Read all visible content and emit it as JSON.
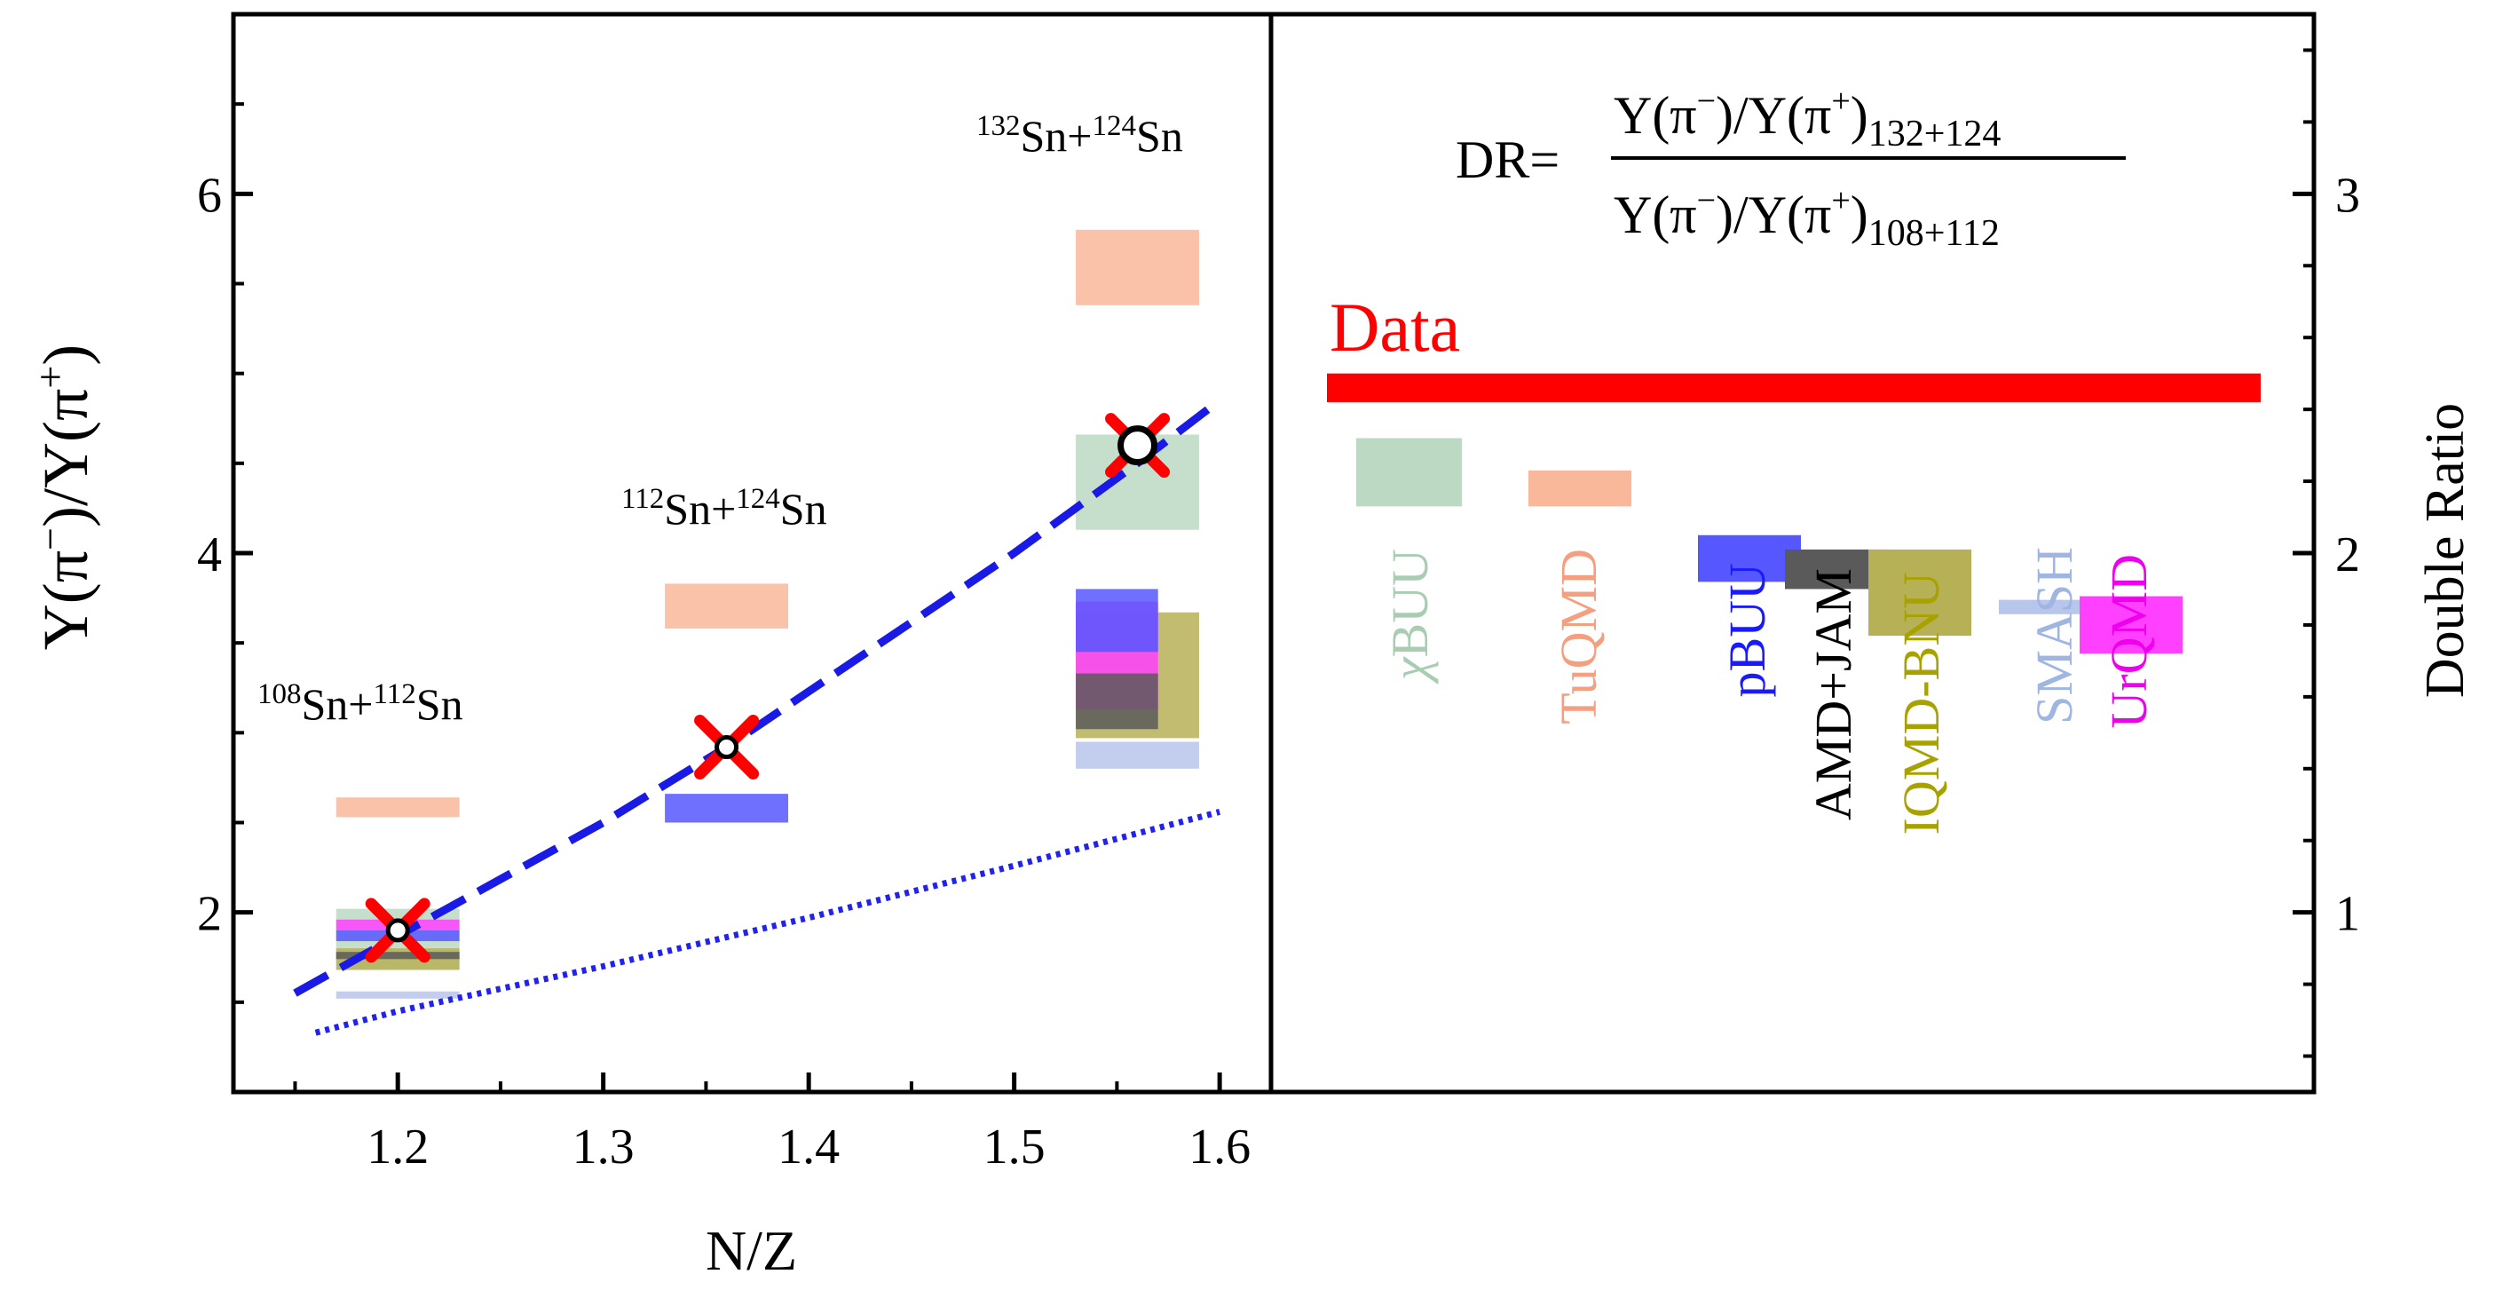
{
  "chart_data": [
    {
      "panel": "left",
      "type": "scatter",
      "xlabel": "N/Z",
      "ylabel_parts": {
        "base": "Y(π",
        "sup1": "−",
        "mid": ")/Y(π",
        "sup2": "+",
        "end": ")"
      },
      "xlim": [
        1.12,
        1.625
      ],
      "ylim": [
        1.0,
        7.0
      ],
      "xticks": [
        1.2,
        1.3,
        1.4,
        1.5,
        1.6
      ],
      "yticks": [
        2,
        4,
        6
      ],
      "xtick_labels": [
        "1.2",
        "1.3",
        "1.4",
        "1.5",
        "1.6"
      ],
      "ytick_labels": [
        "2",
        "4",
        "6"
      ],
      "annotations": [
        {
          "a": "108",
          "b": "Sn+",
          "c": "112",
          "d": "Sn"
        },
        {
          "a": "112",
          "b": "Sn+",
          "c": "124",
          "d": "Sn"
        },
        {
          "a": "132",
          "b": "Sn+",
          "c": "124",
          "d": "Sn"
        }
      ],
      "data_points": [
        {
          "x": 1.2,
          "y": 1.9
        },
        {
          "x": 1.36,
          "y": 2.92
        },
        {
          "x": 1.56,
          "y": 4.6
        }
      ],
      "fit_dashed": [
        [
          1.15,
          1.55
        ],
        [
          1.2,
          1.87
        ],
        [
          1.3,
          2.5
        ],
        [
          1.36,
          2.92
        ],
        [
          1.4,
          3.23
        ],
        [
          1.5,
          4.0
        ],
        [
          1.56,
          4.5
        ],
        [
          1.6,
          4.85
        ]
      ],
      "fit_dotted": [
        [
          1.16,
          1.33
        ],
        [
          1.2,
          1.45
        ],
        [
          1.3,
          1.7
        ],
        [
          1.4,
          1.97
        ],
        [
          1.5,
          2.26
        ],
        [
          1.6,
          2.56
        ]
      ],
      "model_boxes": [
        {
          "model": "TuQMD",
          "x": [
            1.17,
            1.23
          ],
          "y": [
            2.53,
            2.64
          ]
        },
        {
          "model": "χBUU",
          "x": [
            1.17,
            1.23
          ],
          "y": [
            1.68,
            2.02
          ]
        },
        {
          "model": "SMASH",
          "x": [
            1.17,
            1.23
          ],
          "y": [
            1.52,
            1.56
          ]
        },
        {
          "model": "IQMD-BNU",
          "x": [
            1.17,
            1.23
          ],
          "y": [
            1.68,
            1.8
          ]
        },
        {
          "model": "UrQMD",
          "x": [
            1.17,
            1.23
          ],
          "y": [
            1.9,
            1.96
          ]
        },
        {
          "model": "pBUU",
          "x": [
            1.17,
            1.23
          ],
          "y": [
            1.84,
            1.9
          ]
        },
        {
          "model": "AMD+JAM",
          "x": [
            1.17,
            1.23
          ],
          "y": [
            1.74,
            1.78
          ]
        },
        {
          "model": "TuQMD",
          "x": [
            1.33,
            1.39
          ],
          "y": [
            3.58,
            3.83
          ]
        },
        {
          "model": "pBUU",
          "x": [
            1.33,
            1.39
          ],
          "y": [
            2.5,
            2.66
          ]
        },
        {
          "model": "TuQMD",
          "x": [
            1.53,
            1.59
          ],
          "y": [
            5.38,
            5.8
          ]
        },
        {
          "model": "χBUU",
          "x": [
            1.53,
            1.59
          ],
          "y": [
            4.13,
            4.66
          ]
        },
        {
          "model": "SMASH",
          "x": [
            1.53,
            1.59
          ],
          "y": [
            2.8,
            2.95
          ]
        },
        {
          "model": "IQMD-BNU",
          "x": [
            1.53,
            1.59
          ],
          "y": [
            2.97,
            3.67
          ]
        },
        {
          "model": "UrQMD",
          "x": [
            1.53,
            1.57
          ],
          "y": [
            3.13,
            3.73
          ]
        },
        {
          "model": "pBUU",
          "x": [
            1.53,
            1.57
          ],
          "y": [
            3.45,
            3.8
          ]
        },
        {
          "model": "AMD+JAM",
          "x": [
            1.53,
            1.57
          ],
          "y": [
            3.02,
            3.33
          ]
        }
      ]
    },
    {
      "panel": "right",
      "type": "bar",
      "ylabel": "Double Ratio",
      "ylim": [
        0.5,
        3.5
      ],
      "yticks": [
        1,
        2,
        3
      ],
      "ytick_labels": [
        "1",
        "2",
        "3"
      ],
      "formula": {
        "lhs": "DR=",
        "num_a": "Y(π",
        "num_sup1": "−",
        "num_b": ")/Y(π",
        "num_sup2": "+",
        "num_c": ")",
        "num_sub": "132+124",
        "den_a": "Y(π",
        "den_sup1": "−",
        "den_b": ")/Y(π",
        "den_sup2": "+",
        "den_c": ")",
        "den_sub": "108+112"
      },
      "data_band": {
        "label": "Data",
        "y": [
          2.42,
          2.5
        ]
      },
      "models": [
        {
          "name": "χBUU",
          "greek": "χ",
          "rest": "BUU",
          "y": [
            2.13,
            2.32
          ]
        },
        {
          "name": "TuQMD",
          "y": [
            2.13,
            2.23
          ]
        },
        {
          "name": "pBUU",
          "y": [
            1.92,
            2.05
          ]
        },
        {
          "name": "AMD+JAM",
          "y": [
            1.9,
            2.01
          ]
        },
        {
          "name": "IQMD-BNU",
          "y": [
            1.77,
            2.01
          ]
        },
        {
          "name": "SMASH",
          "y": [
            1.83,
            1.87
          ]
        },
        {
          "name": "UrQMD",
          "y": [
            1.72,
            1.88
          ]
        }
      ]
    }
  ],
  "colors": {
    "axis": "#000000",
    "data_marker": "#ff0000",
    "data_band": "#ff0000",
    "fit_dashed": "#1a1ae6",
    "fit_dotted": "#2222ee",
    "models": {
      "χBUU": "#bcd9c4",
      "TuQMD": "#f9b89a",
      "pBUU": "#5757ff",
      "AMD+JAM": "#5a5a5a",
      "IQMD-BNU": "#b6b056",
      "SMASH": "#b9c6ec",
      "UrQMD": "#ff40ff"
    },
    "labels": {
      "χBUU": "#a8cdb2",
      "TuQMD": "#f4a080",
      "pBUU": "#1a1aff",
      "AMD+JAM": "#000000",
      "IQMD-BNU": "#a8a200",
      "SMASH": "#9fb6e2",
      "UrQMD": "#ee00ee"
    }
  }
}
